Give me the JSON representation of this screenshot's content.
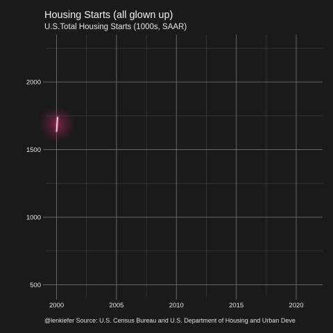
{
  "chart_data": {
    "type": "line",
    "title": "Housing Starts (all glown up)",
    "subtitle": "U.S.Total Housing Starts (1000s, SAAR)",
    "caption": "@lenkiefer Source: U.S. Census Bureau and U.S. Department of Housing and Urban Deve",
    "xlabel": "",
    "ylabel": "",
    "xlim": [
      1999.1,
      2022.2
    ],
    "ylim": [
      410,
      2350
    ],
    "x_ticks": [
      2000,
      2005,
      2010,
      2015,
      2020
    ],
    "x_tick_labels": [
      "2000",
      "2005",
      "2010",
      "2015",
      "2020"
    ],
    "y_ticks": [
      500,
      1000,
      1500,
      2000
    ],
    "y_tick_labels": [
      "500",
      "1000",
      "1500",
      "2000"
    ],
    "grid": true,
    "colors": {
      "background": "#1a1a1a",
      "grid": "#6e6e6e",
      "grid_minor": "#444444",
      "line": "#ffe6ee",
      "glow": "#d0306e"
    },
    "series": [
      {
        "values": [
          {
            "x": 2000.0,
            "y": 1636
          },
          {
            "x": 2000.08,
            "y": 1737
          }
        ]
      }
    ]
  }
}
